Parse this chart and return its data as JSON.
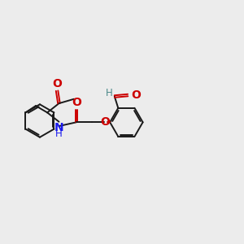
{
  "bg_color": "#ececec",
  "bond_color": "#1a1a1a",
  "O_color": "#cc0000",
  "N_color": "#1a1aee",
  "H_color": "#4a8888",
  "font_size": 8.5,
  "line_width": 1.4,
  "fig_width": 3.0,
  "fig_height": 3.0,
  "dpi": 100,
  "xlim": [
    0,
    10
  ],
  "ylim": [
    0,
    10
  ]
}
